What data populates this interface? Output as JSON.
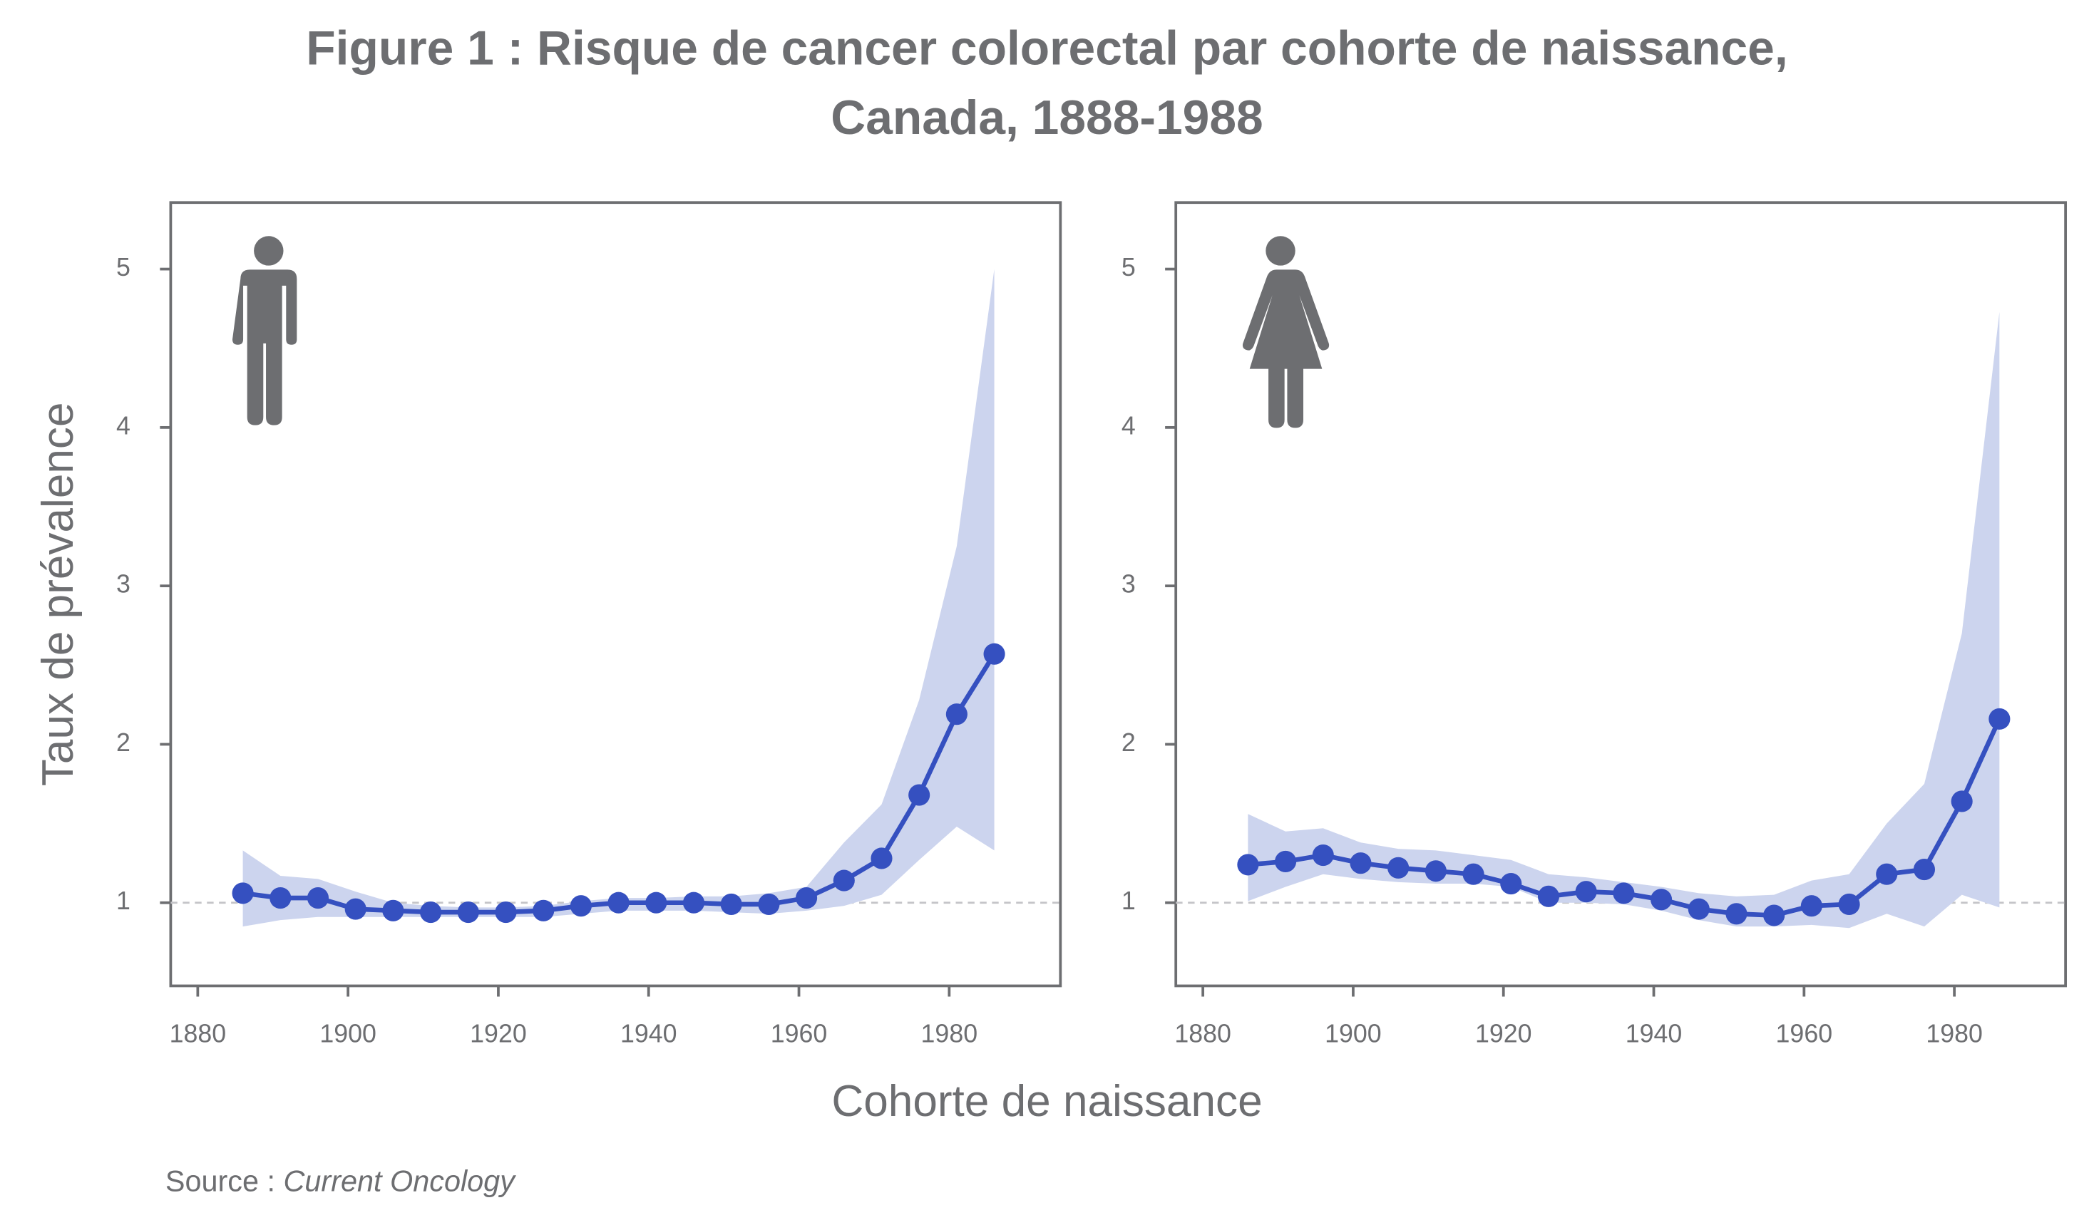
{
  "title": "Figure 1 : Risque de cancer colorectal par cohorte de naissance,",
  "title_line2": "Canada, 1888-1988",
  "xlabel": "Cohorte de naissance",
  "ylabel": "Taux de prévalence",
  "source": {
    "prefix": "Source :",
    "name": "Current Oncology"
  },
  "chart_data": [
    {
      "type": "line",
      "icon": "male",
      "x": [
        1886,
        1891,
        1896,
        1901,
        1906,
        1911,
        1916,
        1921,
        1926,
        1931,
        1936,
        1941,
        1946,
        1951,
        1956,
        1961,
        1966,
        1971,
        1976,
        1981,
        1986
      ],
      "series": [
        {
          "color": "#3550c0",
          "band_color": "#ccd4ee",
          "values": [
            1.06,
            1.03,
            1.03,
            0.96,
            0.95,
            0.94,
            0.94,
            0.94,
            0.95,
            0.98,
            1.0,
            1.0,
            1.0,
            0.99,
            0.99,
            1.03,
            1.14,
            1.28,
            1.68,
            2.19,
            2.57
          ],
          "upper": [
            1.33,
            1.17,
            1.15,
            1.07,
            1.0,
            0.98,
            0.97,
            0.97,
            0.98,
            1.01,
            1.03,
            1.03,
            1.04,
            1.04,
            1.06,
            1.1,
            1.38,
            1.62,
            2.28,
            3.25,
            5.0
          ],
          "lower": [
            0.85,
            0.89,
            0.91,
            0.91,
            0.91,
            0.91,
            0.91,
            0.91,
            0.91,
            0.93,
            0.95,
            0.95,
            0.95,
            0.94,
            0.93,
            0.95,
            0.98,
            1.05,
            1.27,
            1.48,
            1.33
          ]
        }
      ],
      "xlim": [
        1876.4,
        1994.8
      ],
      "xticks": [
        1880,
        1900,
        1920,
        1940,
        1960,
        1980
      ],
      "ylim": [
        0.475,
        5.42
      ],
      "yticks": [
        1,
        2,
        3,
        4,
        5
      ],
      "reference_line": 1
    },
    {
      "type": "line",
      "icon": "female",
      "x": [
        1886,
        1891,
        1896,
        1901,
        1906,
        1911,
        1916,
        1921,
        1926,
        1931,
        1936,
        1941,
        1946,
        1951,
        1956,
        1961,
        1966,
        1971,
        1976,
        1981,
        1986
      ],
      "series": [
        {
          "color": "#3550c0",
          "band_color": "#ccd4ee",
          "values": [
            1.24,
            1.26,
            1.3,
            1.25,
            1.22,
            1.2,
            1.18,
            1.12,
            1.04,
            1.07,
            1.06,
            1.02,
            0.96,
            0.93,
            0.92,
            0.98,
            0.99,
            1.18,
            1.21,
            1.64,
            2.16
          ],
          "upper": [
            1.56,
            1.45,
            1.47,
            1.38,
            1.34,
            1.33,
            1.3,
            1.27,
            1.18,
            1.16,
            1.13,
            1.1,
            1.06,
            1.04,
            1.05,
            1.14,
            1.18,
            1.5,
            1.75,
            2.7,
            4.73
          ],
          "lower": [
            1.01,
            1.1,
            1.18,
            1.15,
            1.13,
            1.12,
            1.12,
            1.1,
            1.0,
            1.0,
            0.99,
            0.95,
            0.89,
            0.85,
            0.85,
            0.86,
            0.84,
            0.93,
            0.85,
            1.05,
            0.97
          ]
        }
      ],
      "xlim": [
        1876.4,
        1994.8
      ],
      "xticks": [
        1880,
        1900,
        1920,
        1940,
        1960,
        1980
      ],
      "ylim": [
        0.475,
        5.42
      ],
      "yticks": [
        1,
        2,
        3,
        4,
        5
      ],
      "reference_line": 1
    }
  ]
}
